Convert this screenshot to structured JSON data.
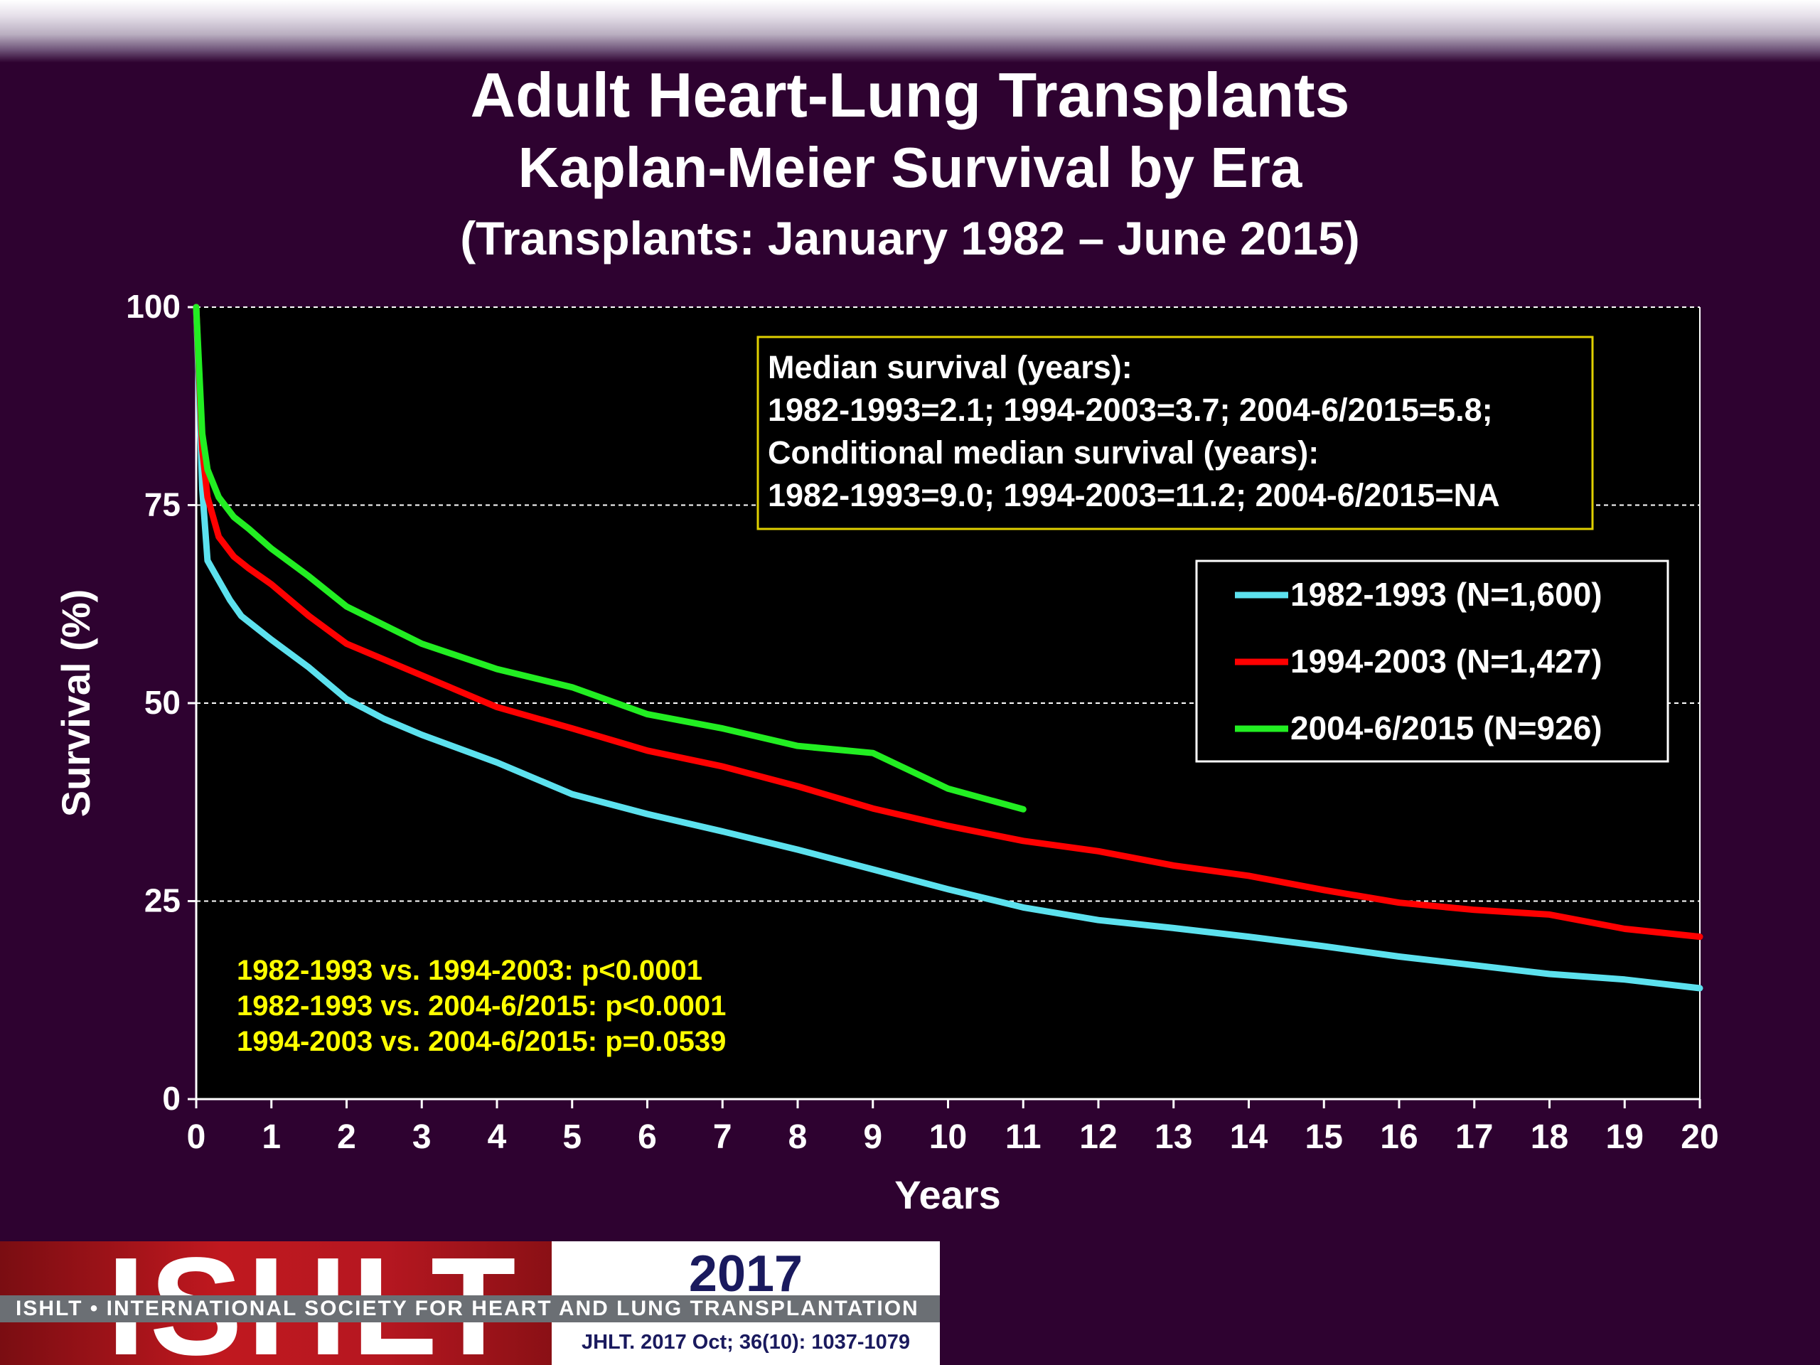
{
  "header": {
    "title": "Adult Heart-Lung Transplants",
    "subtitle": "Kaplan-Meier Survival by Era",
    "period": "(Transplants: January 1982 – June 2015)"
  },
  "colors": {
    "background": "#2e0230",
    "plot_background": "#000000",
    "series_1982_1993": "#5ce1ee",
    "series_1994_2003": "#ff0000",
    "series_2004_2015": "#22ee22",
    "annotation_text": "#ffff00"
  },
  "chart_data": {
    "type": "line",
    "xlabel": "Years",
    "ylabel": "Survival (%)",
    "xlim": [
      0,
      20
    ],
    "ylim": [
      0,
      100
    ],
    "x_ticks": [
      "0",
      "1",
      "2",
      "3",
      "4",
      "5",
      "6",
      "7",
      "8",
      "9",
      "10",
      "11",
      "12",
      "13",
      "14",
      "15",
      "16",
      "17",
      "18",
      "19",
      "20"
    ],
    "y_ticks": [
      "0",
      "25",
      "50",
      "75",
      "100"
    ],
    "grid": "horizontal dashed",
    "legend_position": "right",
    "series": [
      {
        "name": "1982-1993 (N=1,600)",
        "color": "#5ce1ee",
        "x": [
          0,
          0.08,
          0.15,
          0.3,
          0.45,
          0.6,
          1,
          1.5,
          2,
          2.5,
          3,
          4,
          5,
          6,
          7,
          8,
          9,
          10,
          11,
          12,
          13,
          14,
          15,
          16,
          17,
          18,
          19,
          20
        ],
        "y": [
          100,
          77,
          68,
          65.5,
          63,
          61,
          58,
          54.5,
          50.5,
          48,
          46,
          42.5,
          38.5,
          36,
          33.8,
          31.5,
          29,
          26.5,
          24.2,
          22.6,
          21.6,
          20.5,
          19.3,
          18,
          16.9,
          15.8,
          15.1,
          14
        ]
      },
      {
        "name": "1994-2003 (N=1,427)",
        "color": "#ff0000",
        "x": [
          0,
          0.08,
          0.15,
          0.3,
          0.5,
          0.7,
          1,
          1.5,
          2,
          3,
          4,
          5,
          6,
          7,
          8,
          9,
          10,
          11,
          12,
          13,
          14,
          15,
          16,
          17,
          18,
          19,
          20
        ],
        "y": [
          100,
          82,
          76,
          71,
          68.5,
          67,
          65,
          61,
          57.5,
          53.5,
          49.5,
          46.8,
          44,
          42,
          39.5,
          36.7,
          34.5,
          32.6,
          31.3,
          29.5,
          28.2,
          26.4,
          24.8,
          23.9,
          23.3,
          21.5,
          20.5
        ]
      },
      {
        "name": "2004-6/2015 (N=926)",
        "color": "#22ee22",
        "x": [
          0,
          0.08,
          0.15,
          0.3,
          0.5,
          0.7,
          1,
          1.5,
          2,
          3,
          4,
          5,
          6,
          7,
          8,
          9,
          10,
          11
        ],
        "y": [
          100,
          84,
          79.5,
          76,
          73.5,
          72,
          69.5,
          66,
          62.2,
          57.5,
          54.3,
          52,
          48.6,
          46.8,
          44.6,
          43.7,
          39.2,
          36.6
        ]
      }
    ],
    "annotations": {
      "median_box": [
        "Median survival (years):",
        "1982-1993=2.1; 1994-2003=3.7; 2004-6/2015=5.8;",
        "Conditional median survival (years):",
        "1982-1993=9.0; 1994-2003=11.2; 2004-6/2015=NA"
      ],
      "p_values": [
        "1982-1993 vs. 1994-2003: p<0.0001",
        "1982-1993 vs. 2004-6/2015: p<0.0001",
        "1994-2003 vs. 2004-6/2015: p=0.0539"
      ]
    }
  },
  "footer": {
    "logo_text": "ISHLT",
    "society_name": "ISHLT • INTERNATIONAL SOCIETY FOR HEART AND LUNG TRANSPLANTATION",
    "year": "2017",
    "citation": "JHLT. 2017 Oct; 36(10): 1037-1079"
  }
}
